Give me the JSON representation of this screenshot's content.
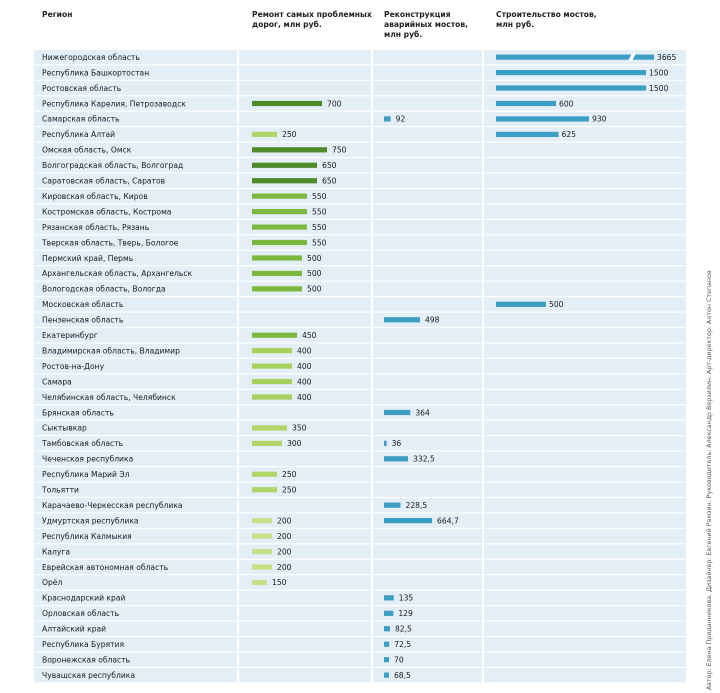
{
  "headers": {
    "region": "Регион",
    "roads": "Ремонт самых проблемных дорог, млн руб.",
    "reconstruction": "Реконструкция аварийных мостов, млн руб.",
    "bridges": "Строительство мостов, млн руб."
  },
  "side_note": "Автор: Елена Приданникова. Дизайнер: Евгений Рамзин. Руководитель: Александр Верзилин. Арт-директор: Антон Степанов",
  "colors": {
    "roads_dark": "#4e8a2a",
    "roads_mid": "#7cb83e",
    "roads_light": "#c6e08a",
    "blue": "#3d9ec4",
    "row_bg": "#e4eef6"
  },
  "chart_data": {
    "type": "bar",
    "series": [
      {
        "name": "Ремонт самых проблемных дорог, млн руб.",
        "key": "roads"
      },
      {
        "name": "Реконструкция аварийных мостов, млн руб.",
        "key": "reconstruction"
      },
      {
        "name": "Строительство мостов, млн руб.",
        "key": "bridges",
        "broken_axis_note": "bar for 3665 shown with break"
      }
    ],
    "rows": [
      {
        "region": "Нижегородская область",
        "roads": null,
        "reconstruction": null,
        "bridges": 3665,
        "bridges_label": "3665"
      },
      {
        "region": "Республика Башкортостан",
        "roads": null,
        "reconstruction": null,
        "bridges": 1500,
        "bridges_label": "1500"
      },
      {
        "region": "Ростовская область",
        "roads": null,
        "reconstruction": null,
        "bridges": 1500,
        "bridges_label": "1500"
      },
      {
        "region": "Республика Карелия, Петрозаводск",
        "roads": 700,
        "roads_label": "700",
        "reconstruction": null,
        "bridges": 600,
        "bridges_label": "600"
      },
      {
        "region": "Самарская область",
        "roads": null,
        "reconstruction": 92,
        "reconstruction_label": "92",
        "bridges": 930,
        "bridges_label": "930"
      },
      {
        "region": "Республика Алтай",
        "roads": 250,
        "roads_label": "250",
        "reconstruction": null,
        "bridges": 625,
        "bridges_label": "625"
      },
      {
        "region": "Омская область, Омск",
        "roads": 750,
        "roads_label": "750",
        "reconstruction": null,
        "bridges": null
      },
      {
        "region": "Волгоградская область,  Волгоград",
        "roads": 650,
        "roads_label": "650",
        "reconstruction": null,
        "bridges": null
      },
      {
        "region": "Саратовская область, Саратов",
        "roads": 650,
        "roads_label": "650",
        "reconstruction": null,
        "bridges": null
      },
      {
        "region": "Кировская область, Киров",
        "roads": 550,
        "roads_label": "550",
        "reconstruction": null,
        "bridges": null
      },
      {
        "region": "Костромская область, Кострома",
        "roads": 550,
        "roads_label": "550",
        "reconstruction": null,
        "bridges": null
      },
      {
        "region": "Рязанская область, Рязань",
        "roads": 550,
        "roads_label": "550",
        "reconstruction": null,
        "bridges": null
      },
      {
        "region": "Тверская область, Тверь, Бологое",
        "roads": 550,
        "roads_label": "550",
        "reconstruction": null,
        "bridges": null
      },
      {
        "region": "Пермский край, Пермь",
        "roads": 500,
        "roads_label": "500",
        "reconstruction": null,
        "bridges": null
      },
      {
        "region": "Архангельская область, Архангельск",
        "roads": 500,
        "roads_label": "500",
        "reconstruction": null,
        "bridges": null
      },
      {
        "region": "Вологодская область, Вологда",
        "roads": 500,
        "roads_label": "500",
        "reconstruction": null,
        "bridges": null
      },
      {
        "region": "Московская область",
        "roads": null,
        "reconstruction": null,
        "bridges": 500,
        "bridges_label": "500"
      },
      {
        "region": "Пензенская область",
        "roads": null,
        "reconstruction": 498,
        "reconstruction_label": "498",
        "bridges": null
      },
      {
        "region": "Екатеринбург",
        "roads": 450,
        "roads_label": "450",
        "reconstruction": null,
        "bridges": null
      },
      {
        "region": "Владимирская область, Владимир",
        "roads": 400,
        "roads_label": "400",
        "reconstruction": null,
        "bridges": null
      },
      {
        "region": "Ростов-на-Дону",
        "roads": 400,
        "roads_label": "400",
        "reconstruction": null,
        "bridges": null
      },
      {
        "region": "Самара",
        "roads": 400,
        "roads_label": "400",
        "reconstruction": null,
        "bridges": null
      },
      {
        "region": "Челябинская область, Челябинск",
        "roads": 400,
        "roads_label": "400",
        "reconstruction": null,
        "bridges": null
      },
      {
        "region": "Брянская область",
        "roads": null,
        "reconstruction": 364,
        "reconstruction_label": "364",
        "bridges": null
      },
      {
        "region": "Сыктывкар",
        "roads": 350,
        "roads_label": "350",
        "reconstruction": null,
        "bridges": null
      },
      {
        "region": "Тамбовская область",
        "roads": 300,
        "roads_label": "300",
        "reconstruction": 36,
        "reconstruction_label": "36",
        "bridges": null
      },
      {
        "region": "Чеченская республика",
        "roads": null,
        "reconstruction": 332.5,
        "reconstruction_label": "332,5",
        "bridges": null
      },
      {
        "region": "Республика Марий Эл",
        "roads": 250,
        "roads_label": "250",
        "reconstruction": null,
        "bridges": null
      },
      {
        "region": "Тольятти",
        "roads": 250,
        "roads_label": "250",
        "reconstruction": null,
        "bridges": null
      },
      {
        "region": "Карачаево-Черкесская республика",
        "roads": null,
        "reconstruction": 228.5,
        "reconstruction_label": "228,5",
        "bridges": null
      },
      {
        "region": "Удмуртская республика",
        "roads": 200,
        "roads_label": "200",
        "reconstruction": 664.7,
        "reconstruction_label": "664,7",
        "bridges": null
      },
      {
        "region": "Республика Калмыкия",
        "roads": 200,
        "roads_label": "200",
        "reconstruction": null,
        "bridges": null
      },
      {
        "region": "Калуга",
        "roads": 200,
        "roads_label": "200",
        "reconstruction": null,
        "bridges": null
      },
      {
        "region": "Еврейская автономная область",
        "roads": 200,
        "roads_label": "200",
        "reconstruction": null,
        "bridges": null
      },
      {
        "region": "Орёл",
        "roads": 150,
        "roads_label": "150",
        "reconstruction": null,
        "bridges": null
      },
      {
        "region": "Краснодарский край",
        "roads": null,
        "reconstruction": 135,
        "reconstruction_label": "135",
        "bridges": null
      },
      {
        "region": "Орловская область",
        "roads": null,
        "reconstruction": 129,
        "reconstruction_label": "129",
        "bridges": null
      },
      {
        "region": "Алтайский край",
        "roads": null,
        "reconstruction": 82.5,
        "reconstruction_label": "82,5",
        "bridges": null
      },
      {
        "region": "Республика Бурятия",
        "roads": null,
        "reconstruction": 72.5,
        "reconstruction_label": "72,5",
        "bridges": null
      },
      {
        "region": "Воронежская область",
        "roads": null,
        "reconstruction": 70,
        "reconstruction_label": "70",
        "bridges": null
      },
      {
        "region": "Чувашская республика",
        "roads": null,
        "reconstruction": 68.5,
        "reconstruction_label": "68,5",
        "bridges": null
      }
    ]
  }
}
